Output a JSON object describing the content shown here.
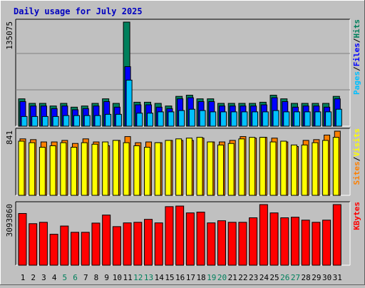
{
  "title": "Daily usage for July 2025",
  "colors": {
    "background": "#c0c0c0",
    "title": "#0000c0",
    "hits": "#00805c",
    "files": "#0000ff",
    "pages": "#00c0ff",
    "visits": "#ffff00",
    "sites": "#ff8000",
    "kbytes": "#ff0000",
    "weekend": "#00805c",
    "weekday": "#000000"
  },
  "chart_data": [
    {
      "type": "bar",
      "panel": "hits-files-pages",
      "ymax_label": "135075",
      "ylim": [
        0,
        135075
      ],
      "legend": [
        {
          "label": "Pages",
          "color": "#00c0ff"
        },
        {
          "label": "/",
          "color": "#000000"
        },
        {
          "label": "Files",
          "color": "#0000ff"
        },
        {
          "label": "/",
          "color": "#000000"
        },
        {
          "label": "Hits",
          "color": "#00805c"
        }
      ],
      "categories": [
        "1",
        "2",
        "3",
        "4",
        "5",
        "6",
        "7",
        "8",
        "9",
        "10",
        "11",
        "12",
        "13",
        "14",
        "15",
        "16",
        "17",
        "18",
        "19",
        "20",
        "21",
        "22",
        "23",
        "24",
        "25",
        "26",
        "27",
        "28",
        "29",
        "30",
        "31"
      ],
      "weekend_days": [
        "5",
        "6",
        "12",
        "13",
        "19",
        "20",
        "26",
        "27"
      ],
      "series": [
        {
          "name": "Hits",
          "values": [
            35500,
            29600,
            29600,
            26200,
            29600,
            24700,
            26200,
            29600,
            35500,
            29600,
            135075,
            31100,
            31100,
            29600,
            26200,
            38700,
            40200,
            35500,
            35500,
            29600,
            29600,
            29600,
            29600,
            31100,
            40200,
            35500,
            29600,
            29600,
            29600,
            29600,
            38700
          ]
        },
        {
          "name": "Files",
          "values": [
            31900,
            26200,
            26200,
            22800,
            26200,
            21300,
            22800,
            26200,
            31900,
            24700,
            77300,
            27700,
            27700,
            24700,
            22800,
            35500,
            36900,
            31900,
            31900,
            26200,
            26200,
            26200,
            26200,
            27700,
            36900,
            31900,
            24700,
            26200,
            26200,
            24700,
            35500
          ]
        },
        {
          "name": "Pages",
          "values": [
            12600,
            12600,
            12600,
            12600,
            13800,
            13800,
            13800,
            13800,
            15400,
            15400,
            59800,
            16900,
            16900,
            18600,
            18600,
            20300,
            22000,
            20300,
            18600,
            18600,
            18600,
            18600,
            18600,
            18600,
            20300,
            18600,
            18600,
            18600,
            18600,
            18600,
            22000
          ]
        }
      ]
    },
    {
      "type": "bar",
      "panel": "visits-sites",
      "ymax_label": "841",
      "ylim": [
        0,
        841
      ],
      "legend": [
        {
          "label": "Sites",
          "color": "#ff8000"
        },
        {
          "label": "/",
          "color": "#000000"
        },
        {
          "label": "Visits",
          "color": "#ffff00"
        }
      ],
      "categories": [
        "1",
        "2",
        "3",
        "4",
        "5",
        "6",
        "7",
        "8",
        "9",
        "10",
        "11",
        "12",
        "13",
        "14",
        "15",
        "16",
        "17",
        "18",
        "19",
        "20",
        "21",
        "22",
        "23",
        "24",
        "25",
        "26",
        "27",
        "28",
        "29",
        "30",
        "31"
      ],
      "series": [
        {
          "name": "Visits",
          "values": [
            710,
            690,
            630,
            650,
            690,
            630,
            690,
            670,
            700,
            720,
            690,
            650,
            630,
            690,
            720,
            740,
            750,
            760,
            700,
            660,
            680,
            740,
            760,
            760,
            700,
            710,
            660,
            660,
            690,
            720,
            760
          ]
        },
        {
          "name": "Sites",
          "values": [
            740,
            730,
            700,
            700,
            720,
            680,
            740,
            700,
            650,
            720,
            770,
            690,
            700,
            690,
            720,
            720,
            720,
            750,
            700,
            700,
            720,
            770,
            750,
            760,
            750,
            700,
            640,
            720,
            730,
            790,
            841
          ]
        }
      ]
    },
    {
      "type": "bar",
      "panel": "kbytes",
      "ymax_label": "3093860",
      "ylim": [
        0,
        3093860
      ],
      "legend": [
        {
          "label": "KBytes",
          "color": "#ff0000"
        }
      ],
      "categories": [
        "1",
        "2",
        "3",
        "4",
        "5",
        "6",
        "7",
        "8",
        "9",
        "10",
        "11",
        "12",
        "13",
        "14",
        "15",
        "16",
        "17",
        "18",
        "19",
        "20",
        "21",
        "22",
        "23",
        "24",
        "25",
        "26",
        "27",
        "28",
        "29",
        "30",
        "31"
      ],
      "series": [
        {
          "name": "KBytes",
          "values": [
            2640000,
            2120000,
            2190000,
            1580000,
            2000000,
            1680000,
            1680000,
            2150000,
            2560000,
            1970000,
            2160000,
            2190000,
            2340000,
            2160000,
            2990000,
            3020000,
            2670000,
            2710000,
            2160000,
            2270000,
            2190000,
            2190000,
            2420000,
            3093860,
            2670000,
            2420000,
            2450000,
            2300000,
            2190000,
            2300000,
            3093860
          ]
        }
      ]
    }
  ]
}
